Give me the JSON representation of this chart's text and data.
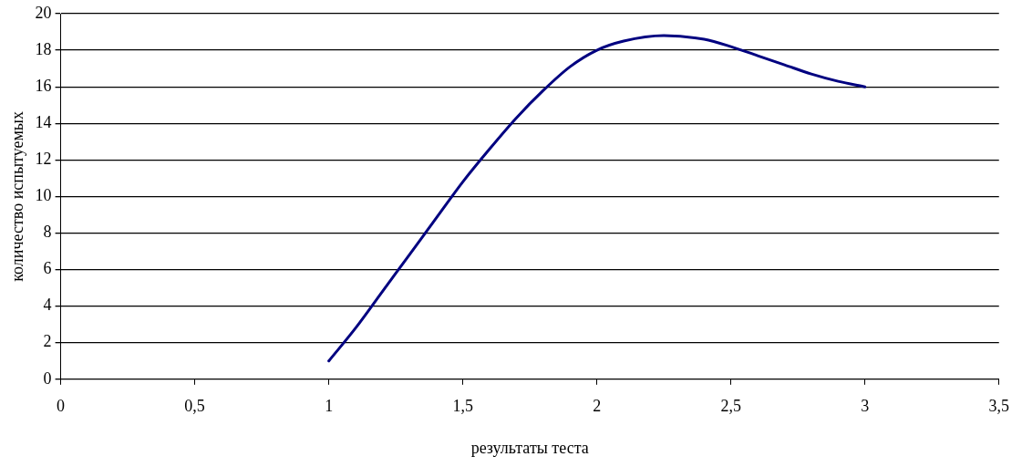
{
  "chart_data": {
    "type": "line",
    "xlabel": "результаты теста",
    "ylabel": "количество испытуемых",
    "x": [
      1,
      1.1,
      1.2,
      1.3,
      1.4,
      1.5,
      1.6,
      1.7,
      1.8,
      1.9,
      2,
      2.1,
      2.25,
      2.4,
      2.5,
      2.6,
      2.7,
      2.8,
      2.9,
      3
    ],
    "series": [
      {
        "color": "#000080",
        "values": [
          1,
          2.8,
          4.8,
          6.8,
          8.8,
          10.8,
          12.6,
          14.3,
          15.8,
          17.1,
          18,
          18.5,
          18.8,
          18.6,
          18.2,
          17.7,
          17.2,
          16.7,
          16.3,
          16
        ]
      }
    ],
    "xlim": [
      0,
      3.5
    ],
    "xticks": [
      {
        "value": 0,
        "label": "0"
      },
      {
        "value": 0.5,
        "label": "0,5"
      },
      {
        "value": 1,
        "label": "1"
      },
      {
        "value": 1.5,
        "label": "1,5"
      },
      {
        "value": 2,
        "label": "2"
      },
      {
        "value": 2.5,
        "label": "2,5"
      },
      {
        "value": 3,
        "label": "3"
      },
      {
        "value": 3.5,
        "label": "3,5"
      }
    ],
    "ylim": [
      0,
      20
    ],
    "yticks": [
      0,
      2,
      4,
      6,
      8,
      10,
      12,
      14,
      16,
      18,
      20
    ],
    "grid": "y",
    "legend": false,
    "marker": "none",
    "line_style": "solid"
  }
}
